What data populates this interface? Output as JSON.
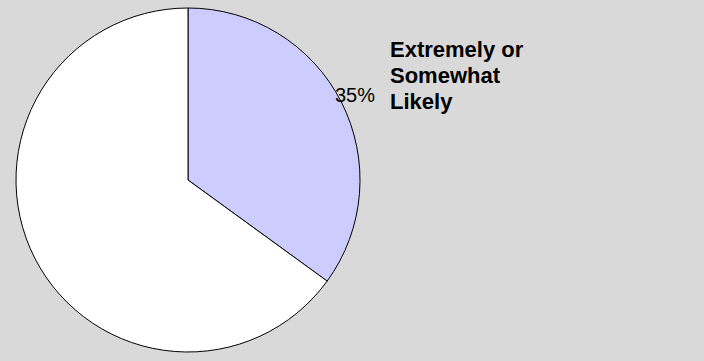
{
  "chart_data": {
    "type": "pie",
    "categories": [
      "Extremely or Somewhat Likely",
      null
    ],
    "values": [
      35,
      65
    ],
    "value_labels": [
      "35%",
      null
    ],
    "colors": [
      "#ccccff",
      "#ffffff"
    ]
  }
}
